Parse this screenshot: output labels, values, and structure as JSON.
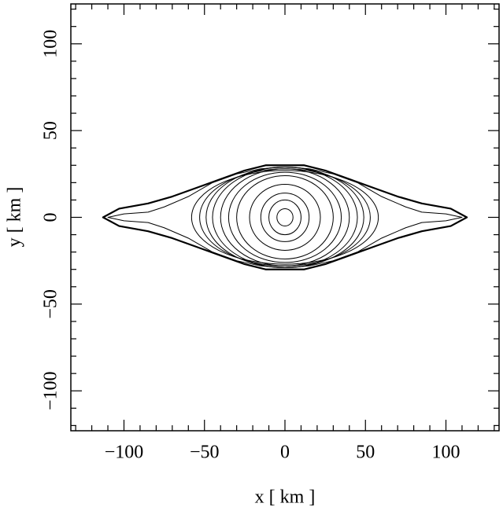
{
  "chart_data": {
    "type": "contour",
    "xlabel": "x  [ km ]",
    "ylabel": "y  [ km ]",
    "xlim": [
      -133,
      133
    ],
    "ylim": [
      -123,
      123
    ],
    "xticks": [
      {
        "value": -100,
        "label": "−100"
      },
      {
        "value": -50,
        "label": "−50"
      },
      0,
      50,
      100
    ],
    "yticks": [
      {
        "value": -100,
        "label": "−100"
      },
      {
        "value": -50,
        "label": "−50"
      },
      0,
      50,
      100
    ],
    "xminorticks": [
      -130,
      -120,
      -110,
      -90,
      -80,
      -70,
      -60,
      -40,
      -30,
      -20,
      -10,
      10,
      20,
      30,
      40,
      60,
      70,
      80,
      90,
      110,
      120,
      130
    ],
    "yminorticks": [
      -120,
      -110,
      -90,
      -80,
      -70,
      -60,
      -40,
      -30,
      -20,
      -10,
      10,
      20,
      30,
      40,
      60,
      70,
      80,
      90,
      110,
      120
    ],
    "color": "#000000",
    "contours": [
      {
        "width": 2.2,
        "x": [
          -113,
          -103,
          -85,
          -70,
          -55,
          -40,
          -25,
          -12,
          0,
          12,
          25,
          40,
          55,
          70,
          85,
          103,
          113,
          103,
          85,
          70,
          55,
          40,
          25,
          12,
          0,
          -12,
          -25,
          -40,
          -55,
          -70,
          -85,
          -103
        ],
        "y": [
          0,
          5,
          8,
          12,
          17,
          22,
          27,
          30,
          30,
          30,
          27,
          22,
          17,
          12,
          8,
          5,
          0,
          -5,
          -8,
          -12,
          -17,
          -22,
          -27,
          -30,
          -30,
          -30,
          -27,
          -22,
          -17,
          -12,
          -8,
          -5
        ]
      },
      {
        "width": 1,
        "x": [
          -110,
          -100,
          -85,
          -75,
          -60,
          -45,
          -30,
          -15,
          0,
          15,
          30,
          45,
          60,
          75,
          85,
          100,
          110,
          100,
          85,
          75,
          60,
          45,
          30,
          15,
          0,
          -15,
          -30,
          -45,
          -60,
          -75,
          -85,
          -100
        ],
        "y": [
          0,
          2,
          3,
          6,
          12,
          20,
          25,
          28,
          29,
          28,
          25,
          20,
          12,
          6,
          3,
          2,
          0,
          -2,
          -3,
          -6,
          -12,
          -20,
          -25,
          -28,
          -29,
          -28,
          -25,
          -20,
          -12,
          -6,
          -3,
          -2
        ]
      }
    ],
    "ellipses": [
      {
        "a": 58,
        "b": 27
      },
      {
        "a": 53,
        "b": 28
      },
      {
        "a": 49,
        "b": 29
      },
      {
        "a": 45,
        "b": 29
      },
      {
        "a": 40,
        "b": 28
      },
      {
        "a": 35,
        "b": 26
      },
      {
        "a": 30,
        "b": 24
      },
      {
        "a": 22,
        "b": 19
      },
      {
        "a": 15,
        "b": 14
      },
      {
        "a": 10,
        "b": 10
      },
      {
        "a": 5,
        "b": 5
      }
    ]
  }
}
